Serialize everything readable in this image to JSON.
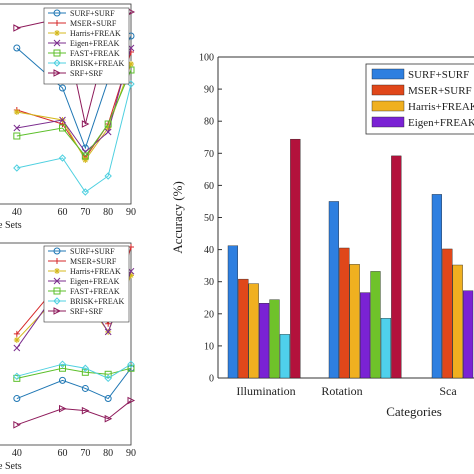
{
  "chart_data": [
    {
      "type": "line",
      "panel": "top-left",
      "x": [
        40,
        60,
        70,
        80,
        90
      ],
      "x_tick_labels": [
        "40",
        "60",
        "70",
        "80",
        "90"
      ],
      "xlabel_fragment": "e Sets",
      "ylim": [
        0,
        100
      ],
      "legend_position": "top-right",
      "series": [
        {
          "name": "SURF+SURF",
          "color": "#1f77b4",
          "marker": "circle",
          "values": [
            78,
            58,
            28,
            62,
            84
          ]
        },
        {
          "name": "MSER+SURF",
          "color": "#d62728",
          "marker": "plus",
          "values": [
            47,
            40,
            23,
            40,
            76
          ]
        },
        {
          "name": "Harris+FREAK",
          "color": "#d4b81c",
          "marker": "star",
          "values": [
            46,
            42,
            22,
            38,
            70
          ]
        },
        {
          "name": "Eigen+FREAK",
          "color": "#7b2d8e",
          "marker": "x",
          "values": [
            38,
            42,
            26,
            36,
            78
          ]
        },
        {
          "name": "FAST+FREAK",
          "color": "#5cbf2a",
          "marker": "square",
          "values": [
            34,
            38,
            24,
            40,
            67
          ]
        },
        {
          "name": "BRISK+FREAK",
          "color": "#4fd0e0",
          "marker": "diamond",
          "values": [
            18,
            23,
            6,
            14,
            60
          ]
        },
        {
          "name": "SRF+SRF",
          "color": "#8e1b5b",
          "marker": "triangle-right",
          "values": [
            88,
            93,
            40,
            84,
            96
          ]
        }
      ]
    },
    {
      "type": "line",
      "panel": "bottom-left",
      "x": [
        40,
        60,
        70,
        80,
        90
      ],
      "x_tick_labels": [
        "40",
        "60",
        "70",
        "80",
        "90"
      ],
      "xlabel_fragment": "e Sets",
      "ylim": [
        0,
        100
      ],
      "legend_position": "top-right",
      "series": [
        {
          "name": "SURF+SURF",
          "color": "#1f77b4",
          "marker": "circle",
          "values": [
            23,
            32,
            28,
            23,
            38
          ]
        },
        {
          "name": "MSER+SURF",
          "color": "#d62728",
          "marker": "plus",
          "values": [
            55,
            82,
            78,
            60,
            98
          ]
        },
        {
          "name": "Harris+FREAK",
          "color": "#d4b81c",
          "marker": "star",
          "values": [
            52,
            76,
            72,
            56,
            84
          ]
        },
        {
          "name": "Eigen+FREAK",
          "color": "#7b2d8e",
          "marker": "x",
          "values": [
            48,
            80,
            74,
            56,
            86
          ]
        },
        {
          "name": "FAST+FREAK",
          "color": "#5cbf2a",
          "marker": "square",
          "values": [
            33,
            38,
            36,
            35,
            38
          ]
        },
        {
          "name": "BRISK+FREAK",
          "color": "#4fd0e0",
          "marker": "diamond",
          "values": [
            34,
            40,
            38,
            33,
            40
          ]
        },
        {
          "name": "SRF+SRF",
          "color": "#8e1b5b",
          "marker": "triangle-right",
          "values": [
            10,
            18,
            17,
            13,
            22
          ]
        }
      ]
    },
    {
      "type": "bar",
      "panel": "right",
      "categories": [
        "Illumination",
        "Rotation",
        "Sca"
      ],
      "xlabel": "Categories",
      "ylabel": "Accuracy (%)",
      "ylim": [
        0,
        100
      ],
      "yticks": [
        0,
        10,
        20,
        30,
        40,
        50,
        60,
        70,
        80,
        90,
        100
      ],
      "grid": false,
      "legend_position": "top-right",
      "series": [
        {
          "name": "SURF+SURF",
          "color": "#2e7fe0",
          "values": [
            41.2,
            55.0,
            57.2
          ]
        },
        {
          "name": "MSER+SURF",
          "color": "#e0471a",
          "values": [
            30.8,
            40.5,
            40.2
          ]
        },
        {
          "name": "Harris+FREAK",
          "color": "#f0b020",
          "values": [
            29.4,
            35.4,
            35.2
          ]
        },
        {
          "name": "Eigen+FREAK",
          "color": "#7a22d4",
          "values": [
            23.3,
            26.6,
            27.2
          ]
        },
        {
          "name": "",
          "color": "#6fc22a",
          "values": [
            24.4,
            33.2,
            null
          ]
        },
        {
          "name": "",
          "color": "#4fd0ec",
          "values": [
            13.6,
            18.6,
            null
          ]
        },
        {
          "name": "",
          "color": "#b3123c",
          "values": [
            74.4,
            69.2,
            null
          ]
        }
      ],
      "legend_entries": [
        "SURF+SURF",
        "MSER+SURF",
        "Harris+FREAK",
        "Eigen+FREAK"
      ]
    }
  ]
}
